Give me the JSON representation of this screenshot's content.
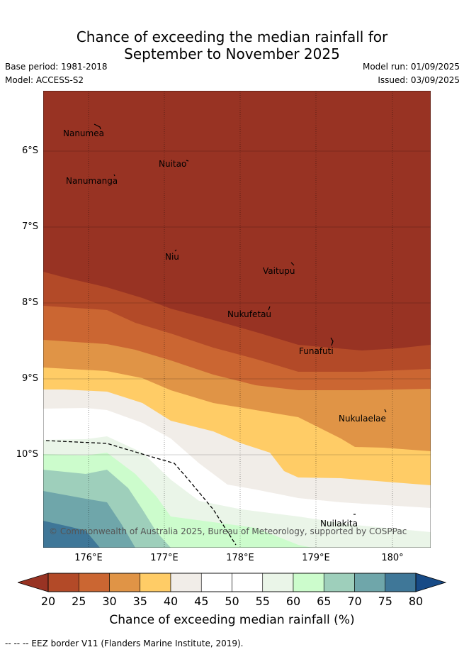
{
  "header": {
    "title_line1": "Chance of exceeding the median rainfall for",
    "title_line2": "September to November 2025",
    "base_period": "Base period: 1981-2018",
    "model": "Model: ACCESS-S2",
    "model_run": "Model run: 01/09/2025",
    "issued": "Issued: 03/09/2025"
  },
  "map": {
    "lat_labels": [
      "6°S",
      "7°S",
      "8°S",
      "9°S",
      "10°S"
    ],
    "lon_labels": [
      "176°E",
      "177°E",
      "178°E",
      "179°E",
      "180°"
    ],
    "places": [
      "Nanumea",
      "Nuitao",
      "Nanumanga",
      "Niu",
      "Vaitupu",
      "Nukufetau",
      "Funafuti",
      "Nukulaelae",
      "Nuilakita"
    ],
    "copyright": "© Commonwealth of Australia 2025, Bureau of Meteorology, supported by COSPPac",
    "legend_line": "EEZ border"
  },
  "colorbar": {
    "ticks": [
      "20",
      "25",
      "30",
      "35",
      "40",
      "45",
      "50",
      "55",
      "60",
      "65",
      "70",
      "75",
      "80"
    ],
    "title": "Chance of exceeding median rainfall (%)",
    "colors": [
      "#983323",
      "#b34a28",
      "#cb6632",
      "#e09446",
      "#ffcc66",
      "#f1ede8",
      "#ffffff",
      "#ffffff",
      "#eaf5e8",
      "#ccfccc",
      "#9ecfbb",
      "#6fa6aa",
      "#3f7798",
      "#174a86"
    ]
  },
  "footnote": "-- -- -- EEZ border V11 (Flanders Marine Institute, 2019)."
}
